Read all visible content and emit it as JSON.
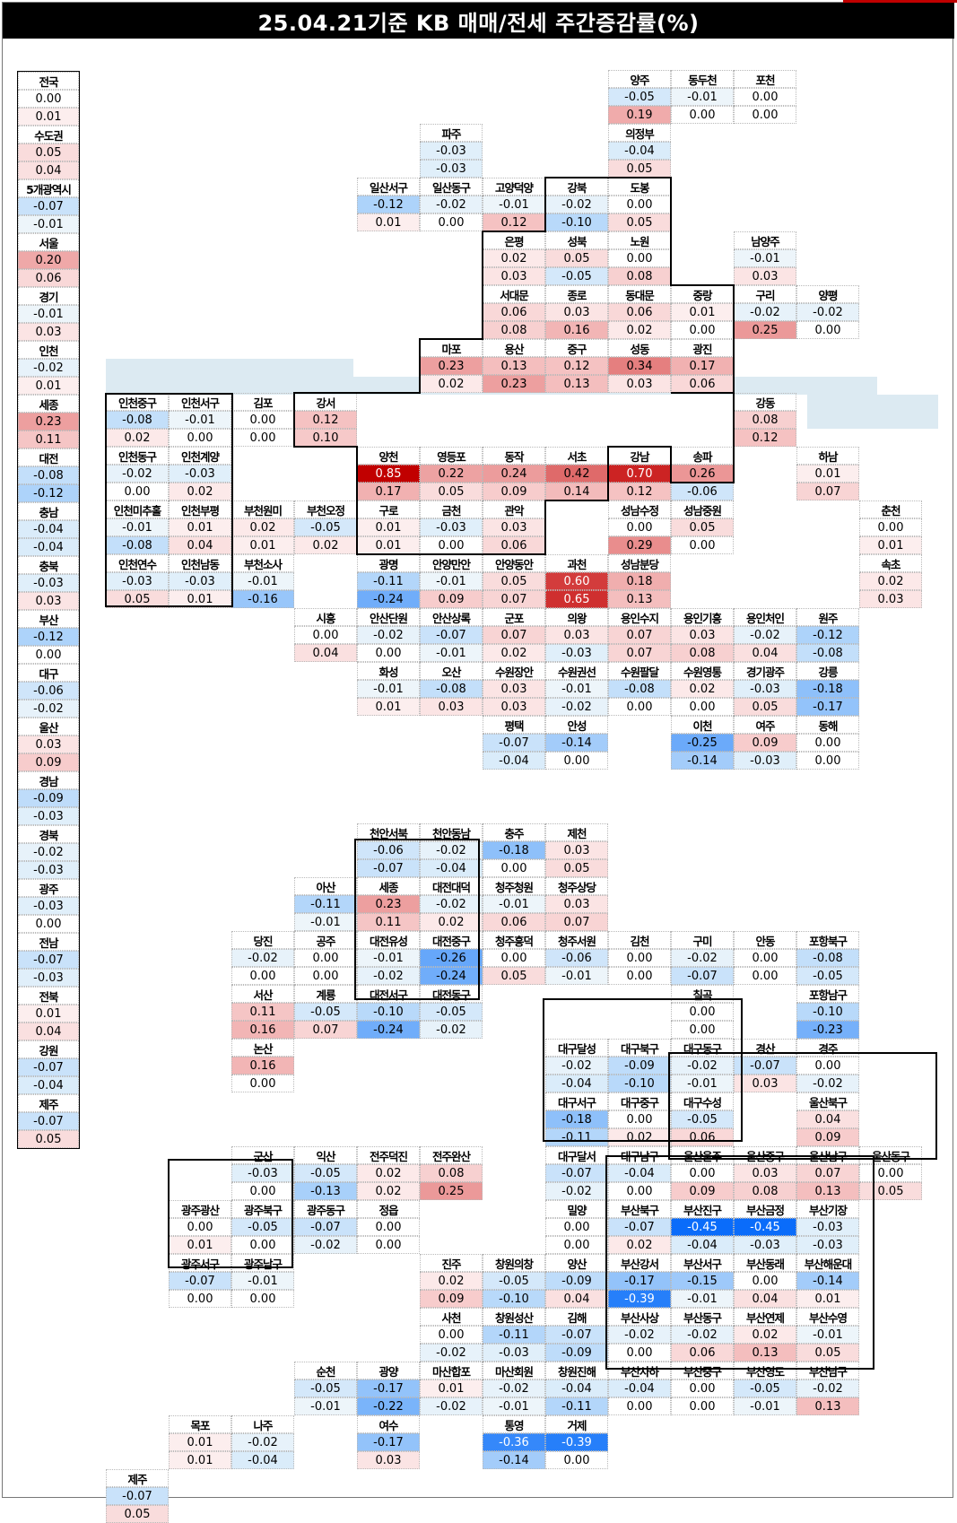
{
  "title": "25.04.21기준 KB 매매/전세 주간증감률(%)",
  "colors": {
    "title_bg": "#000000",
    "accent_red": "#c00000",
    "band": "#dceaf2"
  },
  "left_col": [
    [
      "전국",
      "0.00",
      "0.01"
    ],
    [
      "수도권",
      "0.05",
      "0.04"
    ],
    [
      "5개광역시",
      "-0.07",
      "-0.01"
    ],
    [
      "서울",
      "0.20",
      "0.06"
    ],
    [
      "경기",
      "-0.01",
      "0.03"
    ],
    [
      "인천",
      "-0.02",
      "0.01"
    ],
    [
      "세종",
      "0.23",
      "0.11"
    ],
    [
      "대전",
      "-0.08",
      "-0.12"
    ],
    [
      "충남",
      "-0.04",
      "-0.04"
    ],
    [
      "충북",
      "-0.03",
      "0.03"
    ],
    [
      "부산",
      "-0.12",
      "0.00"
    ],
    [
      "대구",
      "-0.06",
      "-0.02"
    ],
    [
      "울산",
      "0.03",
      "0.09"
    ],
    [
      "경남",
      "-0.09",
      "-0.03"
    ],
    [
      "경북",
      "-0.02",
      "-0.03"
    ],
    [
      "광주",
      "-0.03",
      "0.00"
    ],
    [
      "전남",
      "-0.07",
      "-0.03"
    ],
    [
      "전북",
      "0.01",
      "0.04"
    ],
    [
      "강원",
      "-0.07",
      "-0.04"
    ],
    [
      "제주",
      "-0.07",
      "0.05"
    ]
  ],
  "regions": [
    [
      "양주",
      "-0.05",
      "0.19",
      9,
      0
    ],
    [
      "동두천",
      "-0.01",
      "0.00",
      10,
      0
    ],
    [
      "포천",
      "0.00",
      "0.00",
      11,
      0
    ],
    [
      "파주",
      "-0.03",
      "-0.03",
      6,
      1
    ],
    [
      "의정부",
      "-0.04",
      "0.05",
      9,
      1
    ],
    [
      "일산서구",
      "-0.12",
      "0.01",
      5,
      2
    ],
    [
      "일산동구",
      "-0.02",
      "0.00",
      6,
      2
    ],
    [
      "고양덕양",
      "-0.01",
      "0.12",
      7,
      2
    ],
    [
      "강북",
      "-0.02",
      "-0.10",
      8,
      2
    ],
    [
      "도봉",
      "0.00",
      "0.05",
      9,
      2
    ],
    [
      "은평",
      "0.02",
      "0.03",
      7,
      3
    ],
    [
      "성북",
      "0.05",
      "-0.05",
      8,
      3
    ],
    [
      "노원",
      "0.00",
      "0.08",
      9,
      3
    ],
    [
      "남양주",
      "-0.01",
      "0.03",
      11,
      3
    ],
    [
      "서대문",
      "0.06",
      "0.08",
      7,
      4
    ],
    [
      "종로",
      "0.03",
      "0.16",
      8,
      4
    ],
    [
      "동대문",
      "0.06",
      "0.02",
      9,
      4
    ],
    [
      "중랑",
      "0.01",
      "0.00",
      10,
      4
    ],
    [
      "구리",
      "-0.02",
      "0.25",
      11,
      4
    ],
    [
      "양평",
      "-0.02",
      "0.00",
      12,
      4
    ],
    [
      "마포",
      "0.23",
      "0.02",
      6,
      5
    ],
    [
      "용산",
      "0.13",
      "0.23",
      7,
      5
    ],
    [
      "중구",
      "0.12",
      "0.13",
      8,
      5
    ],
    [
      "성동",
      "0.34",
      "0.03",
      9,
      5
    ],
    [
      "광진",
      "0.17",
      "0.06",
      10,
      5
    ],
    [
      "인천중구",
      "-0.08",
      "0.02",
      1,
      6
    ],
    [
      "인천서구",
      "-0.01",
      "0.00",
      2,
      6
    ],
    [
      "김포",
      "0.00",
      "0.00",
      3,
      6
    ],
    [
      "강서",
      "0.12",
      "0.10",
      4,
      6
    ],
    [
      "강동",
      "0.08",
      "0.12",
      11,
      6
    ],
    [
      "인천동구",
      "-0.02",
      "0.00",
      1,
      7
    ],
    [
      "인천계양",
      "-0.03",
      "0.02",
      2,
      7
    ],
    [
      "양천",
      "0.85",
      "0.17",
      5,
      7
    ],
    [
      "영등포",
      "0.22",
      "0.05",
      6,
      7
    ],
    [
      "동작",
      "0.24",
      "0.09",
      7,
      7
    ],
    [
      "서초",
      "0.42",
      "0.14",
      8,
      7
    ],
    [
      "강남",
      "0.70",
      "0.12",
      9,
      7
    ],
    [
      "송파",
      "0.26",
      "-0.06",
      10,
      7
    ],
    [
      "하남",
      "0.01",
      "0.07",
      12,
      7
    ],
    [
      "인천미추홀",
      "-0.01",
      "-0.08",
      1,
      8
    ],
    [
      "인천부평",
      "0.01",
      "0.04",
      2,
      8
    ],
    [
      "부천원미",
      "0.02",
      "0.01",
      3,
      8
    ],
    [
      "부천오정",
      "-0.05",
      "0.02",
      4,
      8
    ],
    [
      "구로",
      "0.01",
      "0.01",
      5,
      8
    ],
    [
      "금천",
      "-0.03",
      "0.00",
      6,
      8
    ],
    [
      "관악",
      "0.03",
      "0.06",
      7,
      8
    ],
    [
      "성남수정",
      "0.00",
      "0.29",
      9,
      8
    ],
    [
      "성남중원",
      "0.05",
      "0.00",
      10,
      8
    ],
    [
      "춘천",
      "0.00",
      "0.01",
      13,
      8
    ],
    [
      "인천연수",
      "-0.03",
      "0.05",
      1,
      9
    ],
    [
      "인천남동",
      "-0.03",
      "0.01",
      2,
      9
    ],
    [
      "부천소사",
      "-0.01",
      "-0.16",
      3,
      9
    ],
    [
      "광명",
      "-0.11",
      "-0.24",
      5,
      9
    ],
    [
      "안양만안",
      "-0.01",
      "0.09",
      6,
      9
    ],
    [
      "안양동안",
      "0.05",
      "0.07",
      7,
      9
    ],
    [
      "과천",
      "0.60",
      "0.65",
      8,
      9
    ],
    [
      "성남분당",
      "0.18",
      "0.13",
      9,
      9
    ],
    [
      "속초",
      "0.02",
      "0.03",
      13,
      9
    ],
    [
      "시흥",
      "0.00",
      "0.04",
      4,
      10
    ],
    [
      "안산단원",
      "-0.02",
      "0.00",
      5,
      10
    ],
    [
      "안산상록",
      "-0.07",
      "-0.01",
      6,
      10
    ],
    [
      "군포",
      "0.07",
      "0.02",
      7,
      10
    ],
    [
      "의왕",
      "0.03",
      "-0.03",
      8,
      10
    ],
    [
      "용인수지",
      "0.07",
      "0.07",
      9,
      10
    ],
    [
      "용인기흥",
      "0.03",
      "0.08",
      10,
      10
    ],
    [
      "용인처인",
      "-0.02",
      "0.04",
      11,
      10
    ],
    [
      "원주",
      "-0.12",
      "-0.08",
      12,
      10
    ],
    [
      "화성",
      "-0.01",
      "0.01",
      5,
      11
    ],
    [
      "오산",
      "-0.08",
      "0.03",
      6,
      11
    ],
    [
      "수원장안",
      "0.03",
      "0.03",
      7,
      11
    ],
    [
      "수원권선",
      "-0.01",
      "-0.02",
      8,
      11
    ],
    [
      "수원팔달",
      "-0.08",
      "0.00",
      9,
      11
    ],
    [
      "수원영통",
      "0.02",
      "0.00",
      10,
      11
    ],
    [
      "경기광주",
      "-0.03",
      "0.05",
      11,
      11
    ],
    [
      "강릉",
      "-0.18",
      "-0.17",
      12,
      11
    ],
    [
      "평택",
      "-0.07",
      "-0.04",
      7,
      12
    ],
    [
      "안성",
      "-0.14",
      "0.00",
      8,
      12
    ],
    [
      "이천",
      "-0.25",
      "-0.14",
      10,
      12
    ],
    [
      "여주",
      "0.09",
      "-0.03",
      11,
      12
    ],
    [
      "동해",
      "0.00",
      "0.00",
      12,
      12
    ],
    [
      "천안서북",
      "-0.06",
      "-0.07",
      5,
      14
    ],
    [
      "천안동남",
      "-0.02",
      "-0.04",
      6,
      14
    ],
    [
      "충주",
      "-0.18",
      "0.00",
      7,
      14
    ],
    [
      "제천",
      "0.03",
      "0.05",
      8,
      14
    ],
    [
      "아산",
      "-0.11",
      "-0.01",
      4,
      15
    ],
    [
      "세종",
      "0.23",
      "0.11",
      5,
      15
    ],
    [
      "대전대덕",
      "-0.02",
      "0.02",
      6,
      15
    ],
    [
      "청주청원",
      "-0.01",
      "0.06",
      7,
      15
    ],
    [
      "청주상당",
      "0.03",
      "0.07",
      8,
      15
    ],
    [
      "당진",
      "-0.02",
      "0.00",
      3,
      16
    ],
    [
      "공주",
      "0.00",
      "0.00",
      4,
      16
    ],
    [
      "대전유성",
      "-0.01",
      "-0.02",
      5,
      16
    ],
    [
      "대전중구",
      "-0.26",
      "-0.24",
      6,
      16
    ],
    [
      "청주흥덕",
      "0.00",
      "0.05",
      7,
      16
    ],
    [
      "청주서원",
      "-0.06",
      "-0.01",
      8,
      16
    ],
    [
      "김천",
      "0.00",
      "0.00",
      9,
      16
    ],
    [
      "구미",
      "-0.02",
      "-0.07",
      10,
      16
    ],
    [
      "안동",
      "0.00",
      "0.00",
      11,
      16
    ],
    [
      "포항북구",
      "-0.08",
      "-0.05",
      12,
      16
    ],
    [
      "서산",
      "0.11",
      "0.16",
      3,
      17
    ],
    [
      "계룡",
      "-0.05",
      "0.07",
      4,
      17
    ],
    [
      "대전서구",
      "-0.10",
      "-0.24",
      5,
      17
    ],
    [
      "대전동구",
      "-0.05",
      "-0.02",
      6,
      17
    ],
    [
      "칠곡",
      "0.00",
      "0.00",
      10,
      17
    ],
    [
      "포항남구",
      "-0.10",
      "-0.23",
      12,
      17
    ],
    [
      "논산",
      "0.16",
      "0.00",
      3,
      18
    ],
    [
      "대구달성",
      "-0.02",
      "-0.04",
      8,
      18
    ],
    [
      "대구북구",
      "-0.09",
      "-0.10",
      9,
      18
    ],
    [
      "대구동구",
      "-0.02",
      "-0.01",
      10,
      18
    ],
    [
      "경산",
      "-0.07",
      "0.03",
      11,
      18
    ],
    [
      "경주",
      "0.00",
      "-0.02",
      12,
      18
    ],
    [
      "대구서구",
      "-0.18",
      "-0.11",
      8,
      19
    ],
    [
      "대구중구",
      "0.00",
      "0.02",
      9,
      19
    ],
    [
      "대구수성",
      "-0.05",
      "0.06",
      10,
      19
    ],
    [
      "울산북구",
      "0.04",
      "0.09",
      12,
      19
    ],
    [
      "군산",
      "-0.03",
      "0.00",
      3,
      20
    ],
    [
      "익산",
      "-0.05",
      "-0.13",
      4,
      20
    ],
    [
      "전주덕진",
      "0.02",
      "0.02",
      5,
      20
    ],
    [
      "전주완산",
      "0.08",
      "0.25",
      6,
      20
    ],
    [
      "대구달서",
      "-0.07",
      "-0.02",
      8,
      20
    ],
    [
      "대구남구",
      "-0.04",
      "0.00",
      9,
      20
    ],
    [
      "울산울주",
      "0.00",
      "0.09",
      10,
      20
    ],
    [
      "울산중구",
      "0.03",
      "0.08",
      11,
      20
    ],
    [
      "울산남구",
      "0.07",
      "0.13",
      12,
      20
    ],
    [
      "울산동구",
      "0.00",
      "0.05",
      13,
      20
    ],
    [
      "광주광산",
      "0.00",
      "0.01",
      2,
      21
    ],
    [
      "광주북구",
      "-0.05",
      "0.00",
      3,
      21
    ],
    [
      "광주동구",
      "-0.07",
      "-0.02",
      4,
      21
    ],
    [
      "정읍",
      "0.00",
      "0.00",
      5,
      21
    ],
    [
      "밀양",
      "0.00",
      "0.00",
      8,
      21
    ],
    [
      "부산북구",
      "-0.07",
      "0.02",
      9,
      21
    ],
    [
      "부산진구",
      "-0.45",
      "-0.04",
      10,
      21
    ],
    [
      "부산금정",
      "-0.45",
      "-0.03",
      11,
      21
    ],
    [
      "부산기장",
      "-0.03",
      "-0.03",
      12,
      21
    ],
    [
      "광주서구",
      "-0.07",
      "0.00",
      2,
      22
    ],
    [
      "광주남구",
      "-0.01",
      "0.00",
      3,
      22
    ],
    [
      "진주",
      "0.02",
      "0.09",
      6,
      22
    ],
    [
      "창원의창",
      "-0.05",
      "-0.10",
      7,
      22
    ],
    [
      "양산",
      "-0.09",
      "0.04",
      8,
      22
    ],
    [
      "부산강서",
      "-0.17",
      "-0.39",
      9,
      22
    ],
    [
      "부산서구",
      "-0.15",
      "-0.01",
      10,
      22
    ],
    [
      "부산동래",
      "0.00",
      "0.04",
      11,
      22
    ],
    [
      "부산해운대",
      "-0.14",
      "0.01",
      12,
      22
    ],
    [
      "사천",
      "0.00",
      "-0.02",
      6,
      23
    ],
    [
      "창원성산",
      "-0.11",
      "-0.03",
      7,
      23
    ],
    [
      "김해",
      "-0.07",
      "-0.09",
      8,
      23
    ],
    [
      "부산사상",
      "-0.02",
      "0.00",
      9,
      23
    ],
    [
      "부산동구",
      "-0.02",
      "0.06",
      10,
      23
    ],
    [
      "부산연제",
      "0.02",
      "0.13",
      11,
      23
    ],
    [
      "부산수영",
      "-0.01",
      "0.05",
      12,
      23
    ],
    [
      "순천",
      "-0.05",
      "-0.01",
      4,
      24
    ],
    [
      "광양",
      "-0.17",
      "-0.22",
      5,
      24
    ],
    [
      "마산합포",
      "0.01",
      "-0.02",
      6,
      24
    ],
    [
      "마산회원",
      "-0.02",
      "-0.01",
      7,
      24
    ],
    [
      "창원진해",
      "-0.04",
      "-0.11",
      8,
      24
    ],
    [
      "부산사하",
      "-0.04",
      "0.00",
      9,
      24
    ],
    [
      "부산중구",
      "0.00",
      "0.00",
      10,
      24
    ],
    [
      "부산영도",
      "-0.05",
      "-0.01",
      11,
      24
    ],
    [
      "부산남구",
      "-0.02",
      "0.13",
      12,
      24
    ],
    [
      "목포",
      "0.01",
      "0.01",
      2,
      25
    ],
    [
      "나주",
      "-0.02",
      "-0.04",
      3,
      25
    ],
    [
      "여수",
      "-0.17",
      "0.03",
      5,
      25
    ],
    [
      "통영",
      "-0.36",
      "-0.14",
      7,
      25
    ],
    [
      "거제",
      "-0.39",
      "0.00",
      8,
      25
    ],
    [
      "제주",
      "-0.07",
      "0.05",
      1,
      26
    ]
  ]
}
